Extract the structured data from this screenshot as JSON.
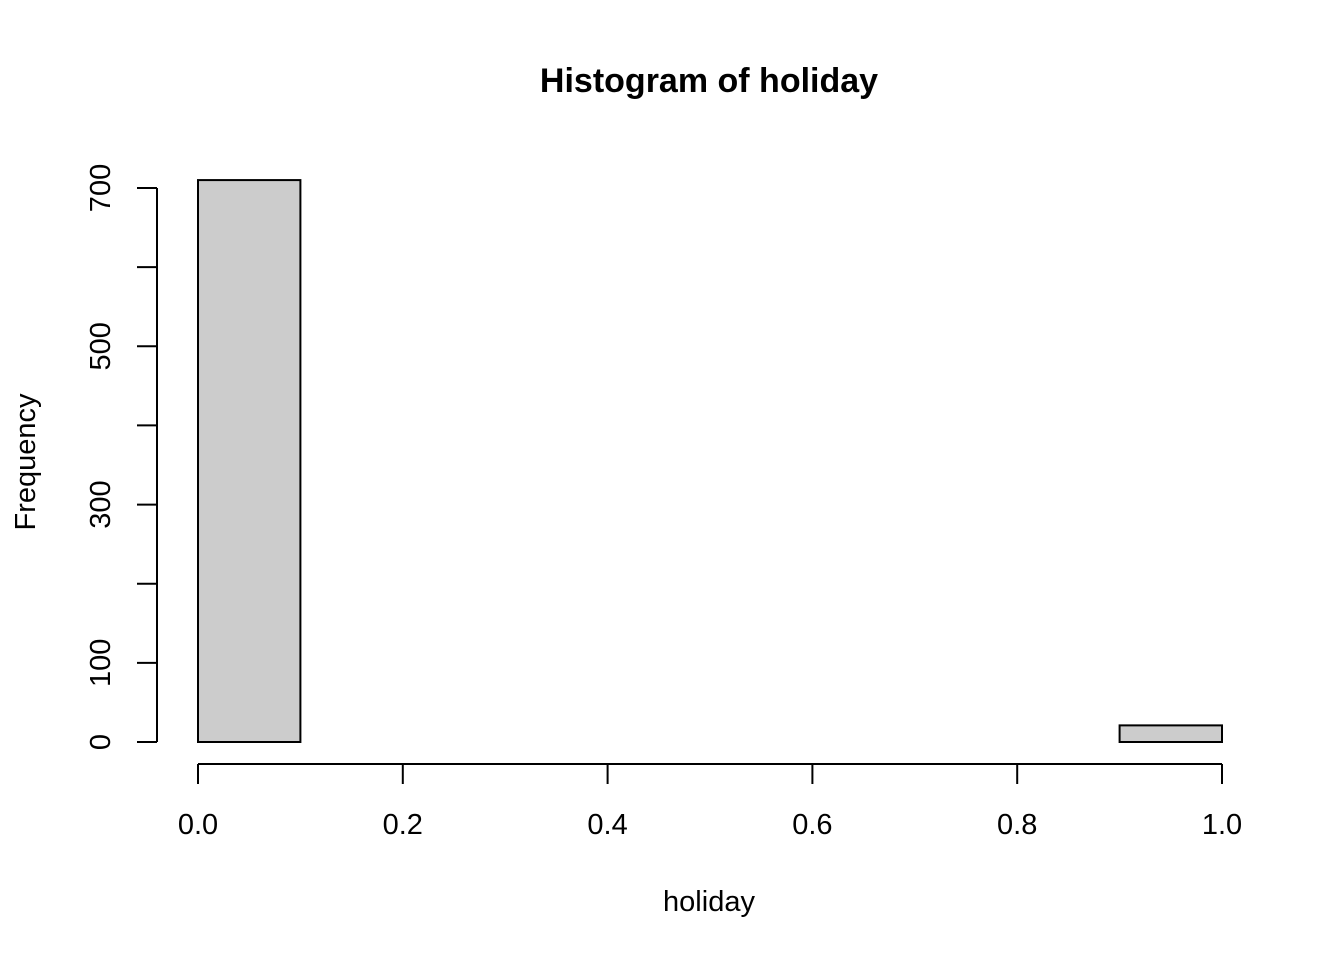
{
  "chart_data": {
    "type": "bar",
    "title": "Histogram of holiday",
    "xlabel": "holiday",
    "ylabel": "Frequency",
    "bins": [
      {
        "x0": 0.0,
        "x1": 0.1,
        "count": 710
      },
      {
        "x0": 0.1,
        "x1": 0.2,
        "count": 0
      },
      {
        "x0": 0.2,
        "x1": 0.3,
        "count": 0
      },
      {
        "x0": 0.3,
        "x1": 0.4,
        "count": 0
      },
      {
        "x0": 0.4,
        "x1": 0.5,
        "count": 0
      },
      {
        "x0": 0.5,
        "x1": 0.6,
        "count": 0
      },
      {
        "x0": 0.6,
        "x1": 0.7,
        "count": 0
      },
      {
        "x0": 0.7,
        "x1": 0.8,
        "count": 0
      },
      {
        "x0": 0.8,
        "x1": 0.9,
        "count": 0
      },
      {
        "x0": 0.9,
        "x1": 1.0,
        "count": 21
      }
    ],
    "xlim": [
      0.0,
      1.0
    ],
    "ylim": [
      0,
      700
    ],
    "x_ticks": [
      0.0,
      0.2,
      0.4,
      0.6,
      0.8,
      1.0
    ],
    "x_tick_labels": [
      "0.0",
      "0.2",
      "0.4",
      "0.6",
      "0.8",
      "1.0"
    ],
    "y_ticks": [
      0,
      100,
      200,
      300,
      400,
      500,
      600,
      700
    ],
    "y_tick_labels": [
      "0",
      "100",
      "",
      "300",
      "",
      "500",
      "",
      "700"
    ],
    "bar_fill": "#cccccc",
    "bar_stroke": "#000000",
    "grid": false
  }
}
